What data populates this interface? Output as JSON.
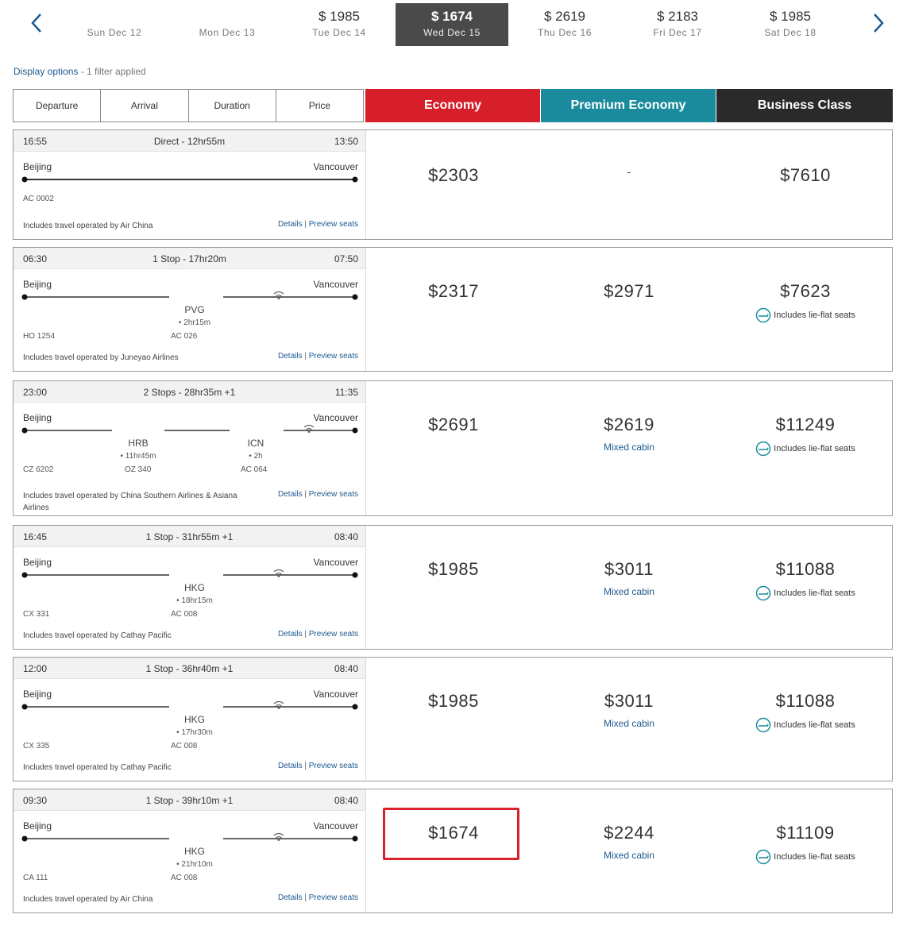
{
  "date_strip": {
    "dates": [
      {
        "price": "",
        "label": "Sun  Dec 12"
      },
      {
        "price": "",
        "label": "Mon  Dec 13"
      },
      {
        "price": "$ 1985",
        "label": "Tue  Dec 14"
      },
      {
        "price": "$ 1674",
        "label": "Wed  Dec 15"
      },
      {
        "price": "$ 2619",
        "label": "Thu  Dec 16"
      },
      {
        "price": "$ 2183",
        "label": "Fri  Dec 17"
      },
      {
        "price": "$ 1985",
        "label": "Sat  Dec 18"
      }
    ],
    "selected_index": 3
  },
  "display_options": {
    "link": "Display options",
    "suffix": " - 1 filter applied"
  },
  "sort": {
    "departure": "Departure",
    "arrival": "Arrival",
    "duration": "Duration",
    "price": "Price"
  },
  "cabins": {
    "economy": "Economy",
    "premium": "Premium Economy",
    "business": "Business Class"
  },
  "links": {
    "details": "Details",
    "separator": " | ",
    "preview": "Preview seats"
  },
  "flights": [
    {
      "dep": "16:55",
      "summary": "Direct - 12hr55m",
      "arr": "13:50",
      "origin": "Beijing",
      "dest": "Vancouver",
      "flight_numbers": [
        "AC 0002"
      ],
      "stops": [],
      "operated": "Includes travel operated by Air China",
      "economy": "$2303",
      "premium": "-",
      "premium_sub": "",
      "business": "$7610",
      "business_sub": ""
    },
    {
      "dep": "06:30",
      "summary": "1 Stop - 17hr20m",
      "arr": "07:50",
      "origin": "Beijing",
      "dest": "Vancouver",
      "flight_numbers": [
        "HO 1254",
        "AC 026"
      ],
      "stops": [
        {
          "code": "PVG",
          "layover": "• 2hr15m"
        }
      ],
      "operated": "Includes travel operated by Juneyao Airlines",
      "economy": "$2317",
      "premium": "$2971",
      "premium_sub": "",
      "business": "$7623",
      "business_sub": "Includes lie-flat seats"
    },
    {
      "dep": "23:00",
      "summary": "2 Stops - 28hr35m +1",
      "arr": "11:35",
      "origin": "Beijing",
      "dest": "Vancouver",
      "flight_numbers": [
        "CZ 6202",
        "OZ 340",
        "AC 064"
      ],
      "stops": [
        {
          "code": "HRB",
          "layover": "• 11hr45m"
        },
        {
          "code": "ICN",
          "layover": "• 2h"
        }
      ],
      "operated": "Includes travel operated by China Southern Airlines & Asiana Airlines",
      "economy": "$2691",
      "premium": "$2619",
      "premium_sub": "Mixed cabin",
      "business": "$11249",
      "business_sub": "Includes lie-flat seats"
    },
    {
      "dep": "16:45",
      "summary": "1 Stop - 31hr55m +1",
      "arr": "08:40",
      "origin": "Beijing",
      "dest": "Vancouver",
      "flight_numbers": [
        "CX 331",
        "AC 008"
      ],
      "stops": [
        {
          "code": "HKG",
          "layover": "• 18hr15m"
        }
      ],
      "operated": "Includes travel operated by Cathay Pacific",
      "economy": "$1985",
      "premium": "$3011",
      "premium_sub": "Mixed cabin",
      "business": "$11088",
      "business_sub": "Includes lie-flat seats"
    },
    {
      "dep": "12:00",
      "summary": "1 Stop - 36hr40m +1",
      "arr": "08:40",
      "origin": "Beijing",
      "dest": "Vancouver",
      "flight_numbers": [
        "CX 335",
        "AC 008"
      ],
      "stops": [
        {
          "code": "HKG",
          "layover": "• 17hr30m"
        }
      ],
      "operated": "Includes travel operated by Cathay Pacific",
      "economy": "$1985",
      "premium": "$3011",
      "premium_sub": "Mixed cabin",
      "business": "$11088",
      "business_sub": "Includes lie-flat seats"
    },
    {
      "dep": "09:30",
      "summary": "1 Stop - 39hr10m +1",
      "arr": "08:40",
      "origin": "Beijing",
      "dest": "Vancouver",
      "flight_numbers": [
        "CA 111",
        "AC 008"
      ],
      "stops": [
        {
          "code": "HKG",
          "layover": "• 21hr10m"
        }
      ],
      "operated": "Includes travel operated by Air China",
      "economy": "$1674",
      "premium": "$2244",
      "premium_sub": "Mixed cabin",
      "business": "$11109",
      "business_sub": "Includes lie-flat seats"
    }
  ],
  "icons": {
    "prev": "chevron-left-icon",
    "next": "chevron-right-icon",
    "wifi": "wifi-icon",
    "flat_seat": "lie-flat-seat-icon"
  },
  "colors": {
    "economy": "#d71f2a",
    "premium": "#1a8b9c",
    "business": "#2a2a2a",
    "selected_date": "#4a4a4a",
    "link": "#1d5a8e",
    "highlight": "#d8232a"
  }
}
